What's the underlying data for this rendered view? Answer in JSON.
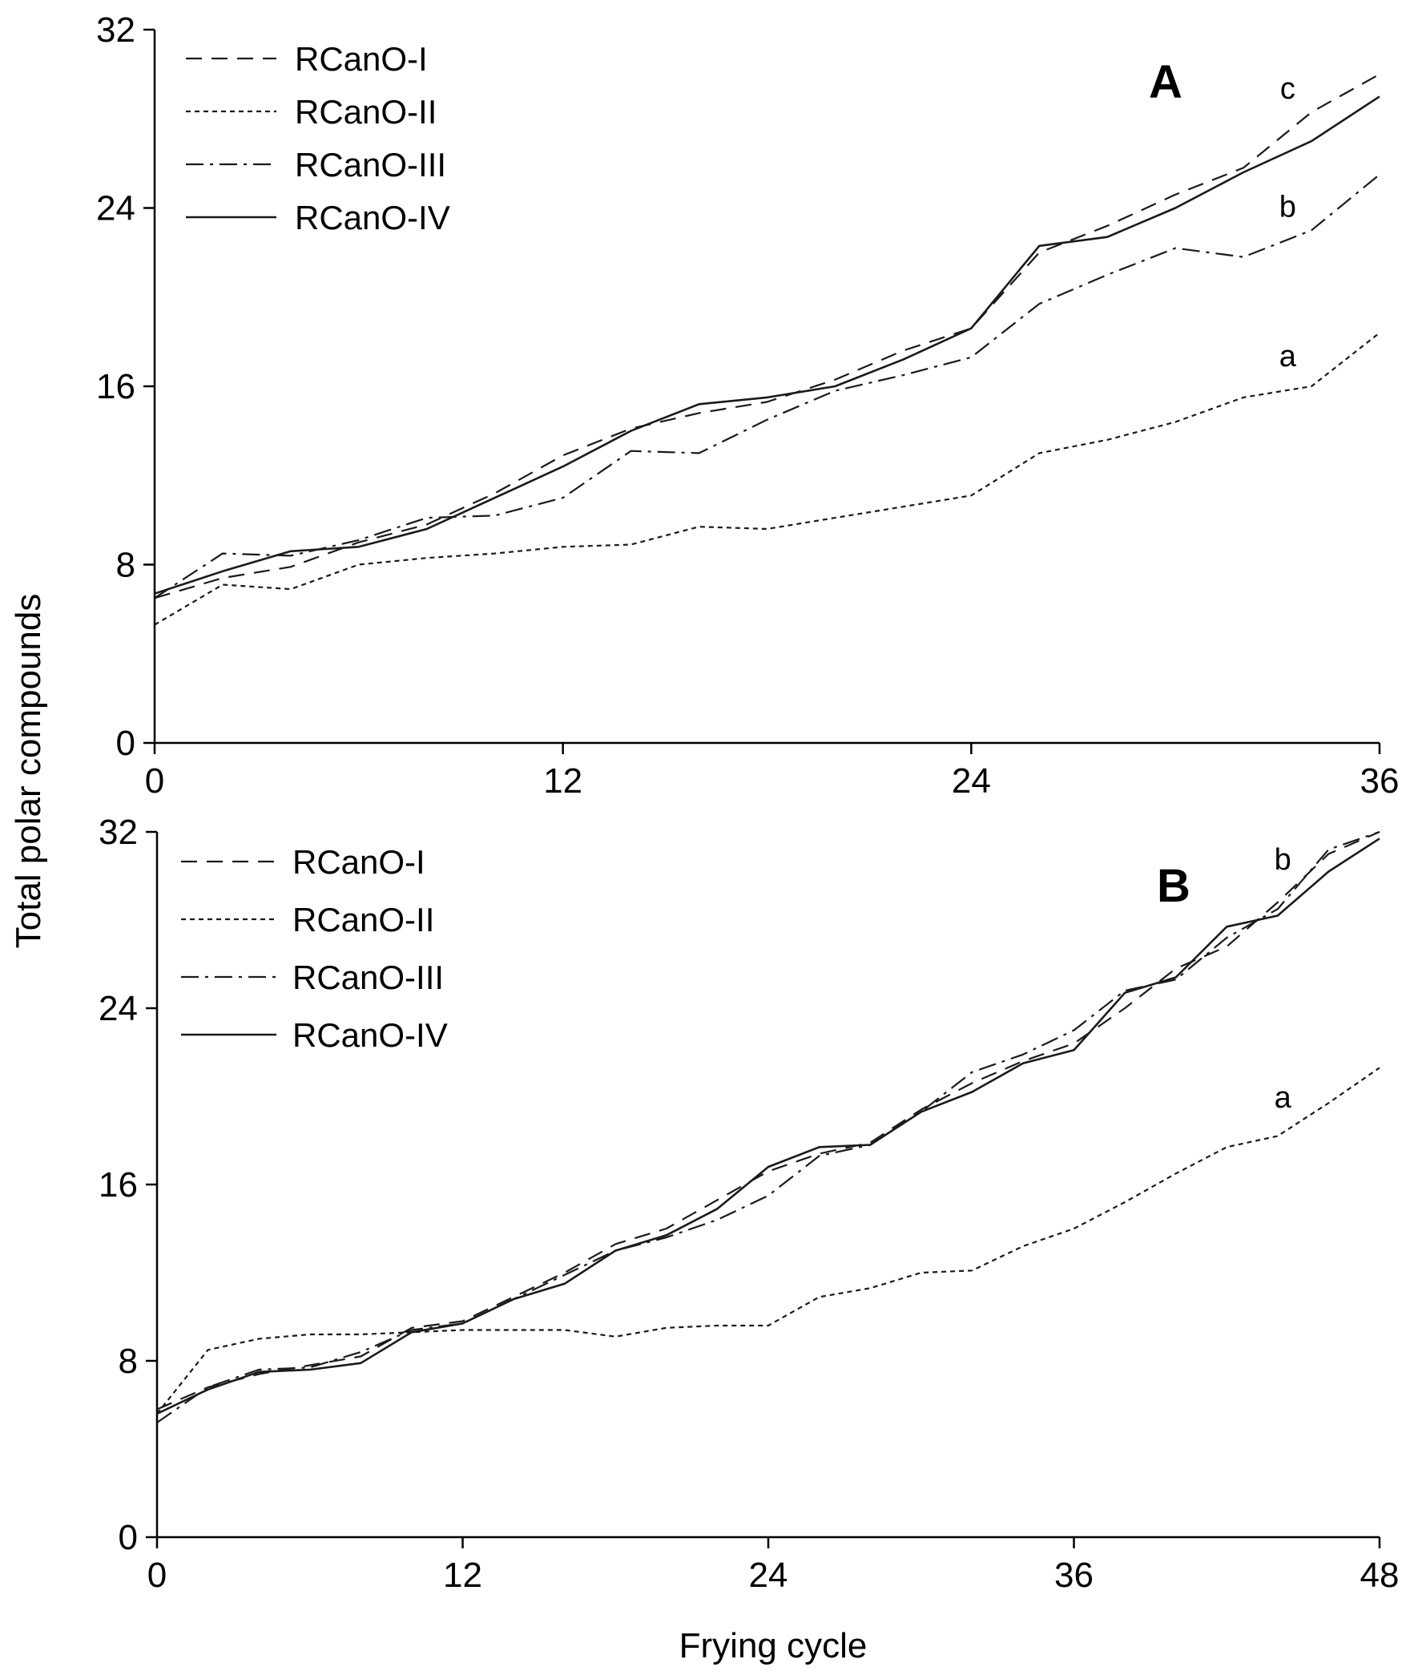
{
  "figure": {
    "ylabel": "Total polar compounds",
    "xlabel": "Frying cycle"
  },
  "chart_data": [
    {
      "type": "line",
      "panel_label": "A",
      "title": "",
      "xlabel": "",
      "ylabel": "Total polar compounds",
      "xlim": [
        0,
        36
      ],
      "ylim": [
        0,
        32
      ],
      "xticks": [
        "0",
        "12",
        "24",
        "36"
      ],
      "yticks": [
        "0",
        "8",
        "16",
        "24",
        "32"
      ],
      "legend_position": "top-left",
      "series": [
        {
          "name": "RCanO-I",
          "dash": "20,12",
          "width": 2.2,
          "x": [
            0,
            2,
            4,
            6,
            8,
            10,
            12,
            14,
            16,
            18,
            20,
            22,
            24,
            26,
            28,
            30,
            32,
            34,
            36
          ],
          "y": [
            6.5,
            7.4,
            7.9,
            9.0,
            9.8,
            11.2,
            12.9,
            14.1,
            14.8,
            15.3,
            16.3,
            17.6,
            18.6,
            22.0,
            23.2,
            24.6,
            25.8,
            28.3,
            30.0
          ]
        },
        {
          "name": "RCanO-II",
          "dash": "6,5",
          "width": 2.2,
          "x": [
            0,
            2,
            4,
            6,
            8,
            10,
            12,
            14,
            16,
            18,
            20,
            22,
            24,
            26,
            28,
            30,
            32,
            34,
            36
          ],
          "y": [
            5.3,
            7.1,
            6.9,
            8.0,
            8.3,
            8.5,
            8.8,
            8.9,
            9.7,
            9.6,
            10.1,
            10.6,
            11.1,
            13.0,
            13.6,
            14.4,
            15.5,
            16.0,
            18.4
          ]
        },
        {
          "name": "RCanO-III",
          "dash": "22,8,4,8",
          "width": 2.2,
          "x": [
            0,
            2,
            4,
            6,
            8,
            10,
            12,
            14,
            16,
            18,
            20,
            22,
            24,
            26,
            28,
            30,
            32,
            34,
            36
          ],
          "y": [
            6.5,
            8.5,
            8.4,
            9.1,
            10.1,
            10.2,
            11.0,
            13.1,
            13.0,
            14.5,
            15.8,
            16.5,
            17.3,
            19.7,
            21.0,
            22.2,
            21.8,
            23.0,
            25.5
          ]
        },
        {
          "name": "RCanO-IV",
          "dash": "",
          "width": 2.6,
          "x": [
            0,
            2,
            4,
            6,
            8,
            10,
            12,
            14,
            16,
            18,
            20,
            22,
            24,
            26,
            28,
            30,
            32,
            34,
            36
          ],
          "y": [
            6.7,
            7.7,
            8.6,
            8.8,
            9.6,
            11.0,
            12.4,
            14.0,
            15.2,
            15.5,
            16.0,
            17.2,
            18.6,
            22.3,
            22.7,
            24.0,
            25.6,
            27.0,
            29.0
          ]
        }
      ],
      "annotations": [
        {
          "text": "c",
          "x": 33.3,
          "y": 28.9
        },
        {
          "text": "b",
          "x": 33.3,
          "y": 23.6
        },
        {
          "text": "a",
          "x": 33.3,
          "y": 16.9
        }
      ]
    },
    {
      "type": "line",
      "panel_label": "B",
      "title": "",
      "xlabel": "Frying cycle",
      "ylabel": "Total polar compounds",
      "xlim": [
        0,
        48
      ],
      "ylim": [
        0,
        32
      ],
      "xticks": [
        "0",
        "12",
        "24",
        "36",
        "48"
      ],
      "yticks": [
        "0",
        "8",
        "16",
        "24",
        "32"
      ],
      "legend_position": "top-left",
      "series": [
        {
          "name": "RCanO-I",
          "dash": "20,12",
          "width": 2.2,
          "x": [
            0,
            2,
            4,
            6,
            8,
            10,
            12,
            14,
            16,
            18,
            20,
            22,
            24,
            26,
            28,
            30,
            32,
            34,
            36,
            38,
            40,
            42,
            44,
            46,
            48
          ],
          "y": [
            5.8,
            6.8,
            7.4,
            7.8,
            8.2,
            9.5,
            9.8,
            10.9,
            12.0,
            13.3,
            14.0,
            15.3,
            16.6,
            17.4,
            17.9,
            19.4,
            20.6,
            21.6,
            22.4,
            24.0,
            25.8,
            26.8,
            28.8,
            31.0,
            32.0
          ]
        },
        {
          "name": "RCanO-II",
          "dash": "6,5",
          "width": 2.2,
          "x": [
            0,
            2,
            4,
            6,
            8,
            10,
            12,
            14,
            16,
            18,
            20,
            22,
            24,
            26,
            28,
            30,
            32,
            34,
            36,
            38,
            40,
            42,
            44,
            46,
            48
          ],
          "y": [
            5.6,
            8.5,
            9.0,
            9.2,
            9.2,
            9.3,
            9.4,
            9.4,
            9.4,
            9.1,
            9.5,
            9.6,
            9.6,
            10.9,
            11.3,
            12.0,
            12.1,
            13.2,
            14.0,
            15.2,
            16.5,
            17.7,
            18.2,
            19.7,
            21.3
          ]
        },
        {
          "name": "RCanO-III",
          "dash": "22,8,4,8",
          "width": 2.2,
          "x": [
            0,
            2,
            4,
            6,
            8,
            10,
            12,
            14,
            16,
            18,
            20,
            22,
            24,
            26,
            28,
            30,
            32,
            34,
            36,
            38,
            40,
            42,
            44,
            46,
            48
          ],
          "y": [
            5.2,
            6.8,
            7.6,
            7.7,
            8.4,
            9.4,
            9.7,
            10.8,
            11.9,
            13.0,
            13.6,
            14.4,
            15.5,
            17.3,
            17.8,
            19.3,
            21.1,
            21.9,
            23.0,
            24.8,
            25.3,
            27.2,
            28.5,
            31.2,
            32.0
          ]
        },
        {
          "name": "RCanO-IV",
          "dash": "",
          "width": 2.6,
          "x": [
            0,
            2,
            4,
            6,
            8,
            10,
            12,
            14,
            16,
            18,
            20,
            22,
            24,
            26,
            28,
            30,
            32,
            34,
            36,
            38,
            40,
            42,
            44,
            46,
            48
          ],
          "y": [
            5.6,
            6.7,
            7.5,
            7.6,
            7.9,
            9.3,
            9.7,
            10.8,
            11.5,
            13.0,
            13.7,
            14.9,
            16.8,
            17.7,
            17.8,
            19.3,
            20.2,
            21.5,
            22.1,
            24.7,
            25.4,
            27.7,
            28.2,
            30.2,
            31.7
          ]
        }
      ],
      "annotations": [
        {
          "text": "b",
          "x": 44.2,
          "y": 30.3
        },
        {
          "text": "a",
          "x": 44.2,
          "y": 19.5
        }
      ]
    }
  ]
}
